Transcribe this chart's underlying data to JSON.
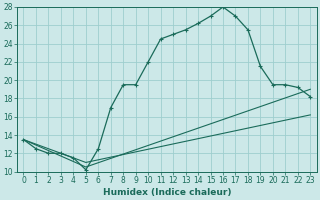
{
  "xlabel": "Humidex (Indice chaleur)",
  "bg_color": "#cce8e8",
  "grid_color": "#9ecece",
  "line_color": "#1a6b5a",
  "xlim": [
    -0.5,
    23.5
  ],
  "ylim": [
    10,
    28
  ],
  "xticks": [
    0,
    1,
    2,
    3,
    4,
    5,
    6,
    7,
    8,
    9,
    10,
    11,
    12,
    13,
    14,
    15,
    16,
    17,
    18,
    19,
    20,
    21,
    22,
    23
  ],
  "yticks": [
    10,
    12,
    14,
    16,
    18,
    20,
    22,
    24,
    26,
    28
  ],
  "curve1_x": [
    0,
    1,
    2,
    3,
    4,
    5,
    6,
    7,
    8,
    9,
    10,
    11,
    12,
    13,
    14,
    15,
    16,
    17,
    18,
    19,
    20,
    21,
    22,
    23
  ],
  "curve1_y": [
    13.5,
    12.5,
    12.0,
    12.0,
    11.5,
    10.2,
    12.5,
    17.0,
    19.5,
    19.5,
    22.0,
    24.5,
    25.0,
    25.5,
    26.2,
    27.0,
    28.0,
    27.0,
    25.5,
    21.5,
    19.5,
    19.5,
    19.2,
    18.2
  ],
  "curve2_x": [
    0,
    5,
    23
  ],
  "curve2_y": [
    13.5,
    10.5,
    19.0
  ],
  "curve3_x": [
    0,
    5,
    23
  ],
  "curve3_y": [
    13.5,
    11.0,
    16.2
  ],
  "tick_fontsize": 5.5,
  "xlabel_fontsize": 6.5
}
